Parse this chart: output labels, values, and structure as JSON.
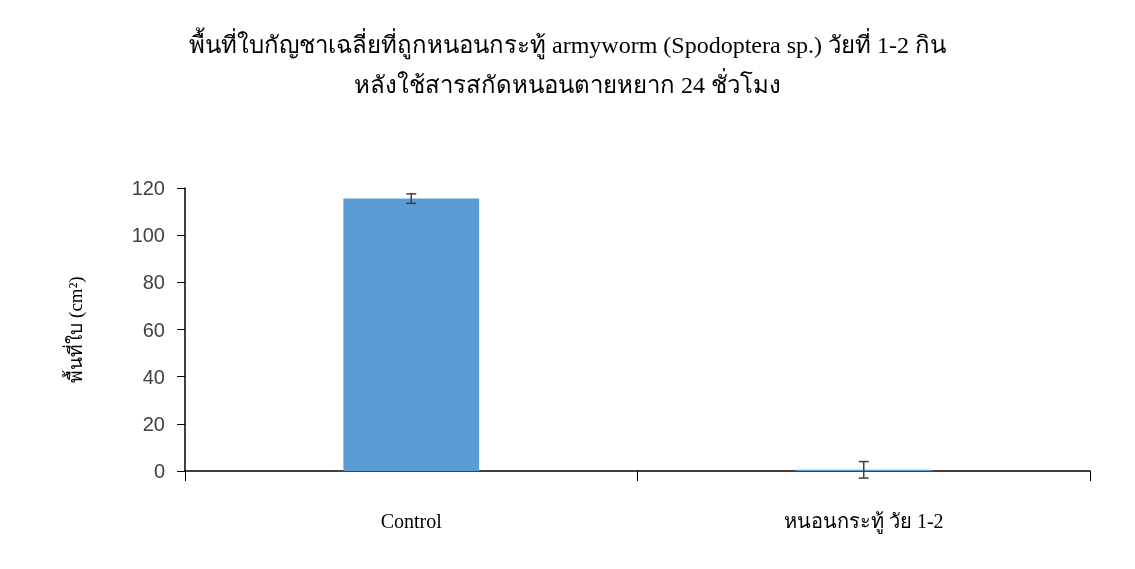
{
  "chart_data": {
    "type": "bar",
    "title": "พื้นที่ใบกัญชาเฉลี่ยที่ถูกหนอนกระทู้ armyworm (Spodoptera sp.) วัยที่ 1-2 กิน\nหลังใช้สารสกัดหนอนตายหยาก 24 ชั่วโมง",
    "ylabel": "พื้นที่ใบ (cm²)",
    "categories": [
      "Control",
      "หนอนกระทู้ วัย 1-2"
    ],
    "values": [
      115.5,
      0.5
    ],
    "errors": [
      2,
      3.5
    ],
    "color": "#5b9bd5",
    "ylim": [
      0,
      120
    ],
    "yticks": [
      0,
      20,
      40,
      60,
      80,
      100,
      120
    ]
  }
}
